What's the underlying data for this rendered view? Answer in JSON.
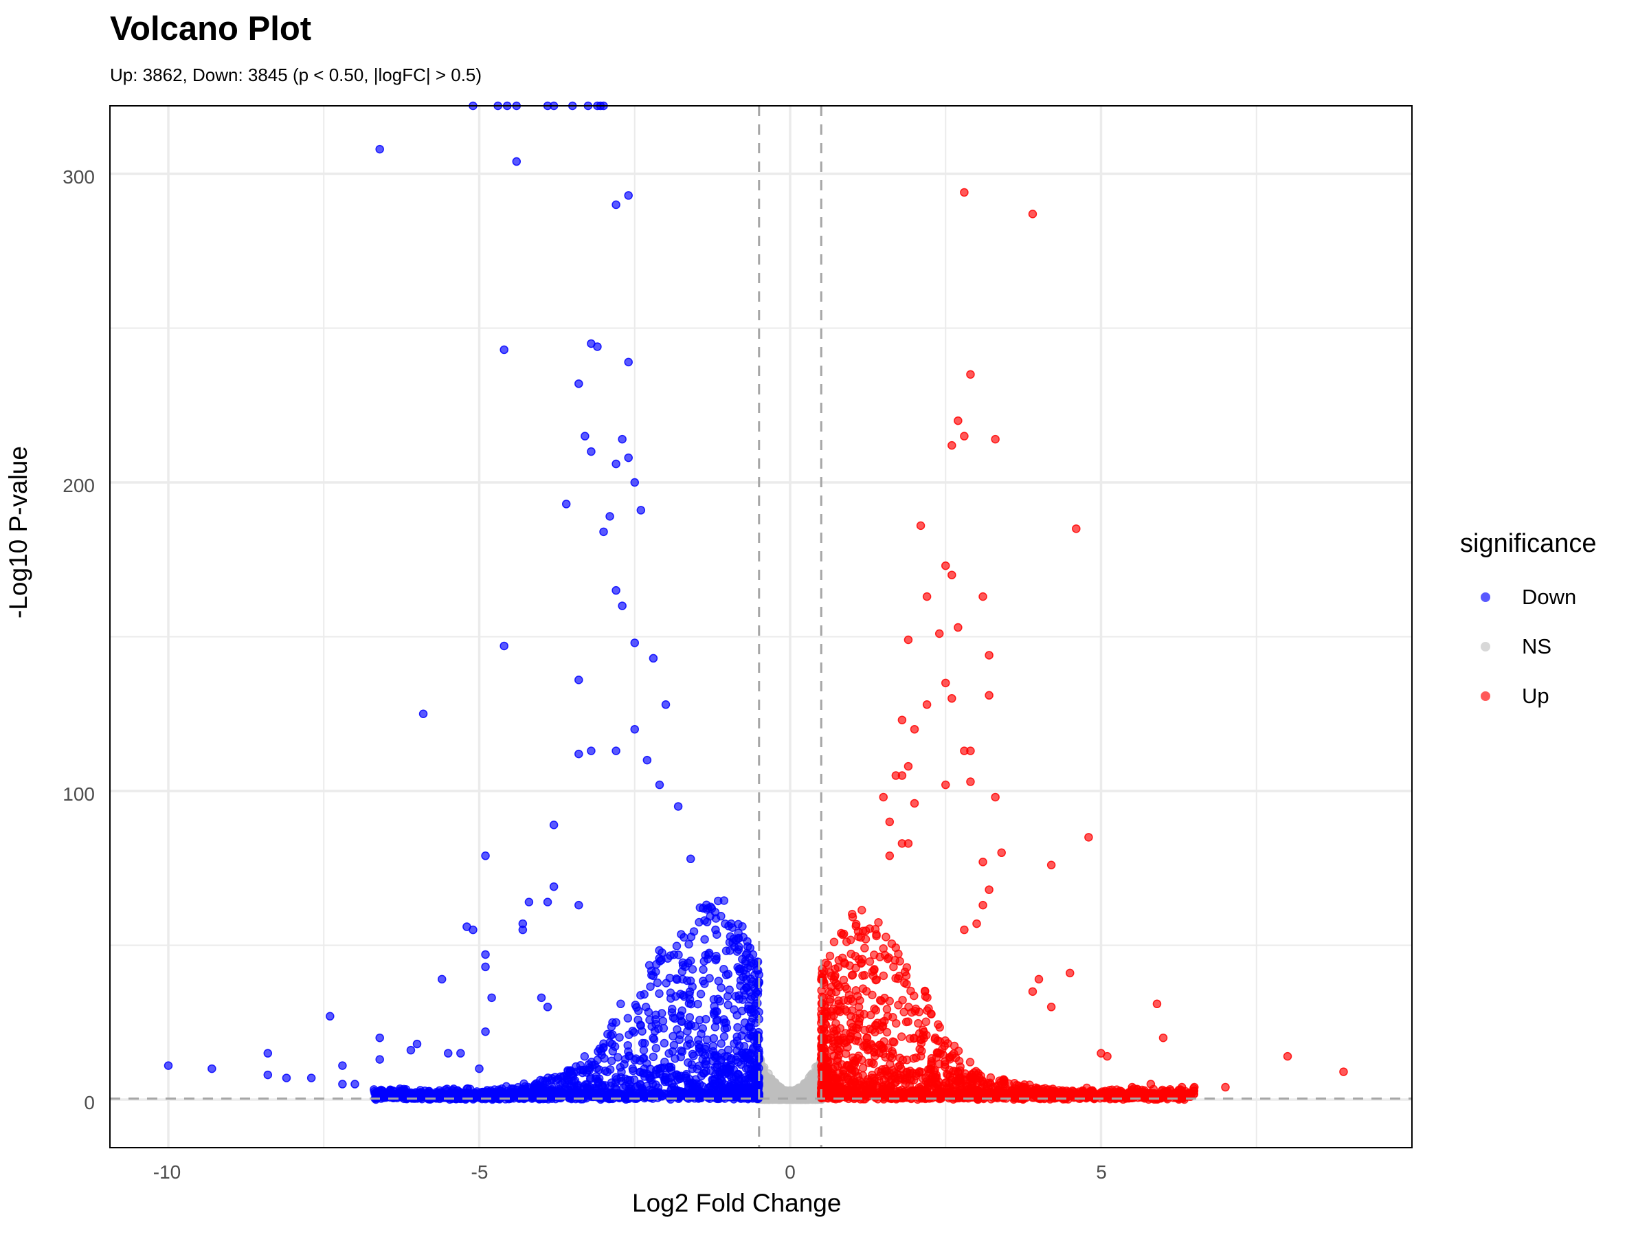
{
  "header": {
    "title": "Volcano Plot",
    "subtitle": "Up: 3862, Down: 3845 (p < 0.50, |logFC| > 0.5)"
  },
  "axes": {
    "xlabel": "Log2 Fold Change",
    "ylabel": "-Log10 P-value",
    "x_ticks": [
      "-10",
      "-5",
      "0",
      "5"
    ],
    "y_ticks": [
      "0",
      "100",
      "200",
      "300"
    ]
  },
  "legend": {
    "title": "significance",
    "items": [
      {
        "label": "Down",
        "color": "#0000ff"
      },
      {
        "label": "NS",
        "color": "#cccccc"
      },
      {
        "label": "Up",
        "color": "#ff0000"
      }
    ]
  },
  "chart_data": {
    "type": "scatter",
    "title": "Volcano Plot",
    "subtitle": "Up: 3862, Down: 3845 (p < 0.50, |logFC| > 0.5)",
    "xlabel": "Log2 Fold Change",
    "ylabel": "-Log10 P-value",
    "xlim": [
      -11,
      9.9
    ],
    "ylim": [
      -15,
      323
    ],
    "x_ticks": [
      -10,
      -5,
      0,
      5
    ],
    "y_ticks": [
      0,
      100,
      200,
      300
    ],
    "grid": true,
    "legend_position": "right",
    "thresholds": {
      "logFC": [
        -0.5,
        0.5
      ],
      "neg_log10_p": 0.301
    },
    "counts": {
      "Up": 3862,
      "Down": 3845
    },
    "series": [
      {
        "name": "Down",
        "color": "#0000ff",
        "points": [
          [
            -10.0,
            11
          ],
          [
            -9.3,
            10
          ],
          [
            -8.4,
            15
          ],
          [
            -8.4,
            8
          ],
          [
            -8.1,
            7
          ],
          [
            -7.7,
            7
          ],
          [
            -7.4,
            27
          ],
          [
            -7.2,
            11
          ],
          [
            -7.2,
            5
          ],
          [
            -7.0,
            5
          ],
          [
            -6.6,
            20
          ],
          [
            -6.6,
            13
          ],
          [
            -6.6,
            308
          ],
          [
            -6.0,
            18
          ],
          [
            -6.1,
            16
          ],
          [
            -5.9,
            125
          ],
          [
            -5.6,
            39
          ],
          [
            -5.5,
            15
          ],
          [
            -5.3,
            15
          ],
          [
            -5.2,
            56
          ],
          [
            -5.1,
            55
          ],
          [
            -5.0,
            10
          ],
          [
            -4.9,
            47
          ],
          [
            -4.9,
            43
          ],
          [
            -4.9,
            79
          ],
          [
            -4.8,
            33
          ],
          [
            -4.9,
            22
          ],
          [
            -4.6,
            147
          ],
          [
            -4.6,
            243
          ],
          [
            -4.4,
            304
          ],
          [
            -4.3,
            57
          ],
          [
            -4.3,
            55
          ],
          [
            -4.2,
            64
          ],
          [
            -4.0,
            33
          ],
          [
            -3.9,
            30
          ],
          [
            -3.9,
            64
          ],
          [
            -3.8,
            69
          ],
          [
            -3.8,
            89
          ],
          [
            -3.6,
            193
          ],
          [
            -3.4,
            63
          ],
          [
            -3.4,
            232
          ],
          [
            -3.4,
            136
          ],
          [
            -3.3,
            215
          ],
          [
            -3.2,
            245
          ],
          [
            -3.2,
            210
          ],
          [
            -3.1,
            244
          ],
          [
            -3.0,
            184
          ],
          [
            -2.9,
            189
          ],
          [
            -2.8,
            290
          ],
          [
            -2.6,
            293
          ],
          [
            -2.6,
            239
          ],
          [
            -2.7,
            214
          ],
          [
            -2.6,
            208
          ],
          [
            -2.8,
            206
          ],
          [
            -2.5,
            200
          ],
          [
            -2.4,
            191
          ],
          [
            -2.8,
            165
          ],
          [
            -2.7,
            160
          ],
          [
            -2.5,
            148
          ],
          [
            -2.2,
            143
          ],
          [
            -2.0,
            128
          ],
          [
            -3.4,
            112
          ],
          [
            -3.2,
            113
          ],
          [
            -2.8,
            113
          ],
          [
            -2.5,
            120
          ],
          [
            -2.3,
            110
          ],
          [
            -2.1,
            102
          ],
          [
            -1.8,
            95
          ],
          [
            -1.6,
            78
          ],
          [
            -1.4,
            62
          ],
          [
            -1.2,
            55
          ],
          [
            -5.1,
            323
          ],
          [
            -4.7,
            323
          ],
          [
            -4.55,
            323
          ],
          [
            -4.4,
            323
          ],
          [
            -3.9,
            323
          ],
          [
            -3.8,
            323
          ],
          [
            -3.5,
            323
          ],
          [
            -3.25,
            323
          ],
          [
            -3.1,
            323
          ],
          [
            -3.05,
            323
          ],
          [
            -3.0,
            323
          ]
        ]
      },
      {
        "name": "NS",
        "color": "#cccccc",
        "points": [
          [
            0,
            0
          ],
          [
            -0.4,
            10
          ],
          [
            0.4,
            10
          ],
          [
            -0.2,
            3
          ],
          [
            0.2,
            3
          ]
        ]
      },
      {
        "name": "Up",
        "color": "#ff0000",
        "points": [
          [
            2.8,
            294
          ],
          [
            3.9,
            287
          ],
          [
            2.9,
            235
          ],
          [
            2.7,
            220
          ],
          [
            2.8,
            215
          ],
          [
            2.6,
            212
          ],
          [
            3.3,
            214
          ],
          [
            2.1,
            186
          ],
          [
            4.6,
            185
          ],
          [
            2.5,
            173
          ],
          [
            2.6,
            170
          ],
          [
            3.1,
            163
          ],
          [
            2.2,
            163
          ],
          [
            2.7,
            153
          ],
          [
            2.4,
            151
          ],
          [
            1.9,
            149
          ],
          [
            3.2,
            144
          ],
          [
            2.5,
            135
          ],
          [
            3.2,
            131
          ],
          [
            2.6,
            130
          ],
          [
            2.2,
            128
          ],
          [
            1.8,
            123
          ],
          [
            2.0,
            120
          ],
          [
            2.8,
            113
          ],
          [
            2.9,
            113
          ],
          [
            1.9,
            108
          ],
          [
            1.7,
            105
          ],
          [
            1.8,
            105
          ],
          [
            2.5,
            102
          ],
          [
            2.9,
            103
          ],
          [
            3.3,
            98
          ],
          [
            1.5,
            98
          ],
          [
            2.0,
            96
          ],
          [
            1.6,
            90
          ],
          [
            4.8,
            85
          ],
          [
            1.8,
            83
          ],
          [
            1.9,
            83
          ],
          [
            3.4,
            80
          ],
          [
            1.6,
            79
          ],
          [
            3.1,
            77
          ],
          [
            4.2,
            76
          ],
          [
            3.1,
            63
          ],
          [
            3.2,
            68
          ],
          [
            2.8,
            55
          ],
          [
            3.0,
            57
          ],
          [
            4.0,
            39
          ],
          [
            4.5,
            41
          ],
          [
            3.9,
            35
          ],
          [
            4.2,
            30
          ],
          [
            5.9,
            31
          ],
          [
            6.0,
            20
          ],
          [
            5.0,
            15
          ],
          [
            5.1,
            14
          ],
          [
            8.0,
            14
          ],
          [
            8.9,
            9
          ],
          [
            7.0,
            4
          ],
          [
            6.5,
            4
          ],
          [
            6.3,
            4
          ],
          [
            5.8,
            5
          ],
          [
            5.5,
            4
          ]
        ]
      }
    ]
  }
}
